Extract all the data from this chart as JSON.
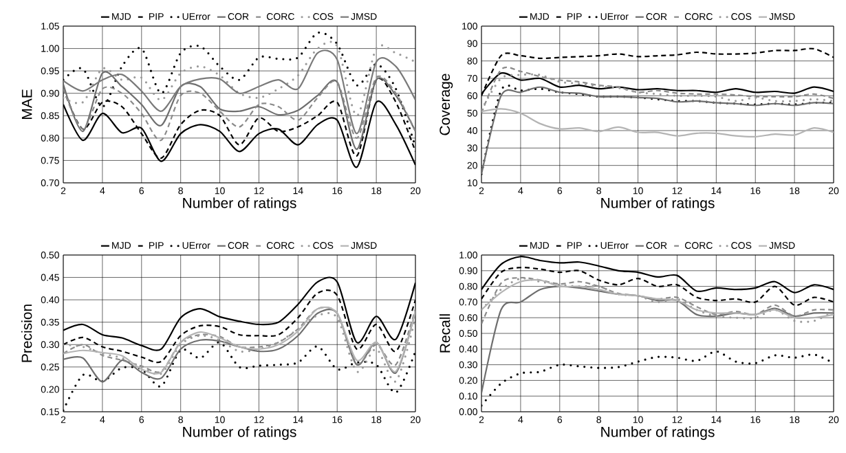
{
  "chart_data": [
    {
      "type": "line",
      "xlabel": "Number of ratings",
      "ylabel": "MAE",
      "x": [
        2,
        3,
        4,
        5,
        6,
        7,
        8,
        9,
        10,
        11,
        12,
        13,
        14,
        15,
        16,
        17,
        18,
        19,
        20
      ],
      "xlim": [
        2,
        20
      ],
      "xticks": [
        2,
        4,
        6,
        8,
        10,
        12,
        14,
        16,
        18,
        20
      ],
      "ylim": [
        0.7,
        1.05
      ],
      "yticks": [
        {
          "value": 0.7,
          "label": "0.70"
        },
        0.75,
        {
          "value": 0.8,
          "label": "0.80"
        },
        0.85,
        {
          "value": 0.9,
          "label": "0.90"
        },
        0.95,
        {
          "value": 1.0,
          "label": "1.00"
        },
        1.05
      ],
      "grid": true,
      "legend": "top",
      "series": [
        {
          "name": "MJD",
          "color": "#000000",
          "line_style": "solid",
          "values": [
            0.875,
            0.795,
            0.855,
            0.812,
            0.822,
            0.748,
            0.81,
            0.83,
            0.815,
            0.77,
            0.81,
            0.82,
            0.785,
            0.83,
            0.84,
            0.735,
            0.88,
            0.83,
            0.74
          ]
        },
        {
          "name": "PIP",
          "color": "#000000",
          "line_style": "dashed",
          "values": [
            0.91,
            0.82,
            0.88,
            0.87,
            0.81,
            0.755,
            0.83,
            0.862,
            0.85,
            0.785,
            0.845,
            0.815,
            0.825,
            0.85,
            0.88,
            0.76,
            0.93,
            0.88,
            0.77
          ]
        },
        {
          "name": "UError",
          "color": "#000000",
          "line_style": "dotted",
          "values": [
            0.93,
            0.955,
            0.87,
            0.96,
            1.0,
            0.9,
            0.99,
            1.005,
            0.96,
            0.93,
            0.98,
            0.977,
            0.98,
            1.035,
            1.01,
            0.918,
            0.965,
            0.91,
            0.78
          ]
        },
        {
          "name": "COR",
          "color": "#6e6e6e",
          "line_style": "solid",
          "values": [
            0.92,
            0.815,
            0.945,
            0.915,
            0.875,
            0.828,
            0.915,
            0.915,
            0.865,
            0.86,
            0.87,
            0.852,
            0.862,
            0.895,
            0.925,
            0.775,
            0.93,
            0.895,
            0.815
          ]
        },
        {
          "name": "CORC",
          "color": "#8a8a8a",
          "line_style": "dashed",
          "values": [
            0.91,
            0.82,
            0.91,
            0.9,
            0.855,
            0.795,
            0.895,
            0.9,
            0.86,
            0.825,
            0.875,
            0.87,
            0.84,
            0.89,
            0.925,
            0.8,
            0.935,
            0.9,
            0.815
          ]
        },
        {
          "name": "COS",
          "color": "#9a9a9a",
          "line_style": "dotted",
          "values": [
            0.89,
            0.88,
            0.955,
            0.93,
            0.935,
            0.885,
            0.945,
            0.96,
            0.94,
            0.9,
            0.89,
            0.91,
            0.94,
            1.0,
            1.005,
            0.85,
            1.0,
            0.99,
            0.97
          ]
        },
        {
          "name": "JMSD",
          "color": "#7a7a7a",
          "line_style": "solid",
          "values": [
            0.928,
            0.905,
            0.93,
            0.942,
            0.905,
            0.86,
            0.915,
            0.932,
            0.932,
            0.9,
            0.915,
            0.93,
            0.91,
            0.99,
            0.975,
            0.81,
            0.97,
            0.96,
            0.885
          ]
        }
      ]
    },
    {
      "type": "line",
      "xlabel": "Number of ratings",
      "ylabel": "Coverage",
      "x": [
        2,
        3,
        4,
        5,
        6,
        7,
        8,
        9,
        10,
        11,
        12,
        13,
        14,
        15,
        16,
        17,
        18,
        19,
        20
      ],
      "xlim": [
        2,
        20
      ],
      "xticks": [
        2,
        4,
        6,
        8,
        10,
        12,
        14,
        16,
        18,
        20
      ],
      "ylim": [
        10,
        100
      ],
      "yticks": [
        10,
        20,
        30,
        40,
        50,
        60,
        70,
        80,
        90,
        100
      ],
      "grid": true,
      "legend": "top",
      "series": [
        {
          "name": "MJD",
          "color": "#000000",
          "line_style": "solid",
          "values": [
            61,
            73,
            69,
            70,
            65,
            66,
            64,
            65,
            63.5,
            64,
            63,
            63,
            62,
            64,
            62,
            62.5,
            61.5,
            65,
            62.5
          ]
        },
        {
          "name": "PIP",
          "color": "#000000",
          "line_style": "dashed",
          "values": [
            60,
            83,
            83,
            81.5,
            82,
            82.5,
            83,
            84,
            82.5,
            83,
            83.5,
            85,
            84,
            84,
            84.5,
            86,
            86,
            87,
            82
          ]
        },
        {
          "name": "UError",
          "color": "#000000",
          "line_style": "dotted",
          "values": [
            15,
            63,
            63,
            64,
            62,
            61,
            59.5,
            59.5,
            59,
            58,
            57,
            57,
            56,
            55.5,
            55,
            55.5,
            55,
            56,
            56
          ]
        },
        {
          "name": "COR",
          "color": "#6e6e6e",
          "line_style": "solid",
          "values": [
            15,
            60,
            62,
            65,
            62,
            61.5,
            59.5,
            59.5,
            59,
            58.5,
            56.5,
            57,
            56,
            55.5,
            54.5,
            55.5,
            54.5,
            56,
            55.5
          ]
        },
        {
          "name": "CORC",
          "color": "#8a8a8a",
          "line_style": "dashed",
          "values": [
            50,
            75,
            74,
            71,
            69,
            68,
            66,
            65,
            62,
            63,
            61.5,
            61,
            61,
            60.5,
            59.5,
            59.5,
            59.5,
            61,
            58.5
          ]
        },
        {
          "name": "COS",
          "color": "#9a9a9a",
          "line_style": "dotted",
          "values": [
            52,
            70,
            72,
            72,
            68,
            67,
            65.5,
            64.5,
            62,
            61,
            60,
            60,
            59.5,
            57,
            59,
            57,
            57,
            58,
            57
          ]
        },
        {
          "name": "JMSD",
          "color": "#b4b4b4",
          "line_style": "solid",
          "values": [
            51,
            52.5,
            50,
            44,
            41,
            41.5,
            39.5,
            42,
            39,
            39,
            37,
            38.5,
            38.5,
            37,
            36.5,
            38,
            37.5,
            41.5,
            39
          ]
        }
      ]
    },
    {
      "type": "line",
      "xlabel": "Number of ratings",
      "ylabel": "Precision",
      "x": [
        2,
        3,
        4,
        5,
        6,
        7,
        8,
        9,
        10,
        11,
        12,
        13,
        14,
        15,
        16,
        17,
        18,
        19,
        20
      ],
      "xlim": [
        2,
        20
      ],
      "xticks": [
        2,
        4,
        6,
        8,
        10,
        12,
        14,
        16,
        18,
        20
      ],
      "ylim": [
        0.15,
        0.5
      ],
      "yticks": [
        0.15,
        {
          "value": 0.2,
          "label": "0.20"
        },
        0.25,
        {
          "value": 0.3,
          "label": "0.30"
        },
        0.35,
        {
          "value": 0.4,
          "label": "0.40"
        },
        0.45,
        {
          "value": 0.5,
          "label": "0.50"
        }
      ],
      "grid": true,
      "legend": "top",
      "series": [
        {
          "name": "MJD",
          "color": "#000000",
          "line_style": "solid",
          "values": [
            0.332,
            0.345,
            0.322,
            0.315,
            0.298,
            0.29,
            0.36,
            0.38,
            0.362,
            0.352,
            0.345,
            0.35,
            0.39,
            0.44,
            0.44,
            0.305,
            0.363,
            0.312,
            0.438
          ]
        },
        {
          "name": "PIP",
          "color": "#000000",
          "line_style": "dashed",
          "values": [
            0.3,
            0.316,
            0.295,
            0.285,
            0.272,
            0.262,
            0.32,
            0.342,
            0.34,
            0.322,
            0.32,
            0.322,
            0.36,
            0.415,
            0.41,
            0.29,
            0.345,
            0.285,
            0.4
          ]
        },
        {
          "name": "UError",
          "color": "#000000",
          "line_style": "dotted",
          "values": [
            0.153,
            0.232,
            0.218,
            0.248,
            0.245,
            0.207,
            0.288,
            0.27,
            0.305,
            0.25,
            0.253,
            0.255,
            0.26,
            0.296,
            0.245,
            0.26,
            0.255,
            0.193,
            0.285
          ]
        },
        {
          "name": "COR",
          "color": "#6e6e6e",
          "line_style": "solid",
          "values": [
            0.267,
            0.27,
            0.217,
            0.265,
            0.238,
            0.225,
            0.29,
            0.31,
            0.308,
            0.295,
            0.285,
            0.29,
            0.32,
            0.37,
            0.37,
            0.255,
            0.305,
            0.237,
            0.375
          ]
        },
        {
          "name": "CORC",
          "color": "#8a8a8a",
          "line_style": "dashed",
          "values": [
            0.28,
            0.3,
            0.276,
            0.265,
            0.252,
            0.24,
            0.305,
            0.322,
            0.318,
            0.295,
            0.295,
            0.305,
            0.335,
            0.38,
            0.37,
            0.258,
            0.3,
            0.255,
            0.38
          ]
        },
        {
          "name": "COS",
          "color": "#9a9a9a",
          "line_style": "dotted",
          "values": [
            0.3,
            0.295,
            0.28,
            0.27,
            0.25,
            0.235,
            0.3,
            0.32,
            0.31,
            0.285,
            0.29,
            0.305,
            0.335,
            0.365,
            0.36,
            0.24,
            0.29,
            0.218,
            0.36
          ]
        },
        {
          "name": "JMSD",
          "color": "#b4b4b4",
          "line_style": "solid",
          "values": [
            0.28,
            0.287,
            0.282,
            0.275,
            0.245,
            0.238,
            0.305,
            0.328,
            0.315,
            0.295,
            0.29,
            0.3,
            0.33,
            0.38,
            0.37,
            0.265,
            0.305,
            0.24,
            0.375
          ]
        }
      ]
    },
    {
      "type": "line",
      "xlabel": "Number of ratings",
      "ylabel": "Recall",
      "x": [
        2,
        3,
        4,
        5,
        6,
        7,
        8,
        9,
        10,
        11,
        12,
        13,
        14,
        15,
        16,
        17,
        18,
        19,
        20
      ],
      "xlim": [
        2,
        20
      ],
      "xticks": [
        2,
        4,
        6,
        8,
        10,
        12,
        14,
        16,
        18,
        20
      ],
      "ylim": [
        0,
        1
      ],
      "yticks": [
        {
          "value": 0,
          "label": "0.00"
        },
        {
          "value": 0.1,
          "label": "0.10"
        },
        {
          "value": 0.2,
          "label": "0.20"
        },
        {
          "value": 0.3,
          "label": "0.30"
        },
        {
          "value": 0.4,
          "label": "0.40"
        },
        {
          "value": 0.5,
          "label": "0.50"
        },
        {
          "value": 0.6,
          "label": "0.60"
        },
        {
          "value": 0.7,
          "label": "0.70"
        },
        {
          "value": 0.8,
          "label": "0.80"
        },
        {
          "value": 0.9,
          "label": "0.90"
        },
        {
          "value": 1,
          "label": "1.00"
        }
      ],
      "grid": true,
      "legend": "top",
      "series": [
        {
          "name": "MJD",
          "color": "#000000",
          "line_style": "solid",
          "values": [
            0.78,
            0.94,
            0.99,
            0.965,
            0.95,
            0.955,
            0.93,
            0.9,
            0.89,
            0.86,
            0.87,
            0.77,
            0.79,
            0.78,
            0.79,
            0.83,
            0.76,
            0.81,
            0.78
          ]
        },
        {
          "name": "PIP",
          "color": "#000000",
          "line_style": "dashed",
          "values": [
            0.72,
            0.89,
            0.92,
            0.91,
            0.89,
            0.9,
            0.84,
            0.81,
            0.85,
            0.8,
            0.81,
            0.73,
            0.71,
            0.72,
            0.7,
            0.8,
            0.68,
            0.73,
            0.7
          ]
        },
        {
          "name": "UError",
          "color": "#000000",
          "line_style": "dotted",
          "values": [
            0.04,
            0.18,
            0.245,
            0.255,
            0.3,
            0.29,
            0.28,
            0.285,
            0.32,
            0.35,
            0.345,
            0.325,
            0.385,
            0.32,
            0.31,
            0.36,
            0.345,
            0.365,
            0.31
          ]
        },
        {
          "name": "COR",
          "color": "#6e6e6e",
          "line_style": "solid",
          "values": [
            0.12,
            0.65,
            0.7,
            0.78,
            0.8,
            0.79,
            0.77,
            0.75,
            0.74,
            0.71,
            0.71,
            0.62,
            0.61,
            0.63,
            0.62,
            0.66,
            0.61,
            0.63,
            0.63
          ]
        },
        {
          "name": "CORC",
          "color": "#8a8a8a",
          "line_style": "dashed",
          "values": [
            0.56,
            0.82,
            0.855,
            0.84,
            0.815,
            0.83,
            0.8,
            0.755,
            0.74,
            0.72,
            0.73,
            0.67,
            0.62,
            0.64,
            0.62,
            0.68,
            0.61,
            0.65,
            0.65
          ]
        },
        {
          "name": "COS",
          "color": "#9a9a9a",
          "line_style": "dotted",
          "values": [
            0.65,
            0.78,
            0.85,
            0.83,
            0.81,
            0.8,
            0.8,
            0.75,
            0.74,
            0.7,
            0.72,
            0.65,
            0.61,
            0.6,
            0.6,
            0.65,
            0.58,
            0.58,
            0.64
          ]
        },
        {
          "name": "JMSD",
          "color": "#b4b4b4",
          "line_style": "solid",
          "values": [
            0.65,
            0.76,
            0.83,
            0.84,
            0.8,
            0.8,
            0.78,
            0.75,
            0.74,
            0.72,
            0.71,
            0.65,
            0.63,
            0.63,
            0.62,
            0.65,
            0.6,
            0.6,
            0.62
          ]
        }
      ]
    }
  ]
}
